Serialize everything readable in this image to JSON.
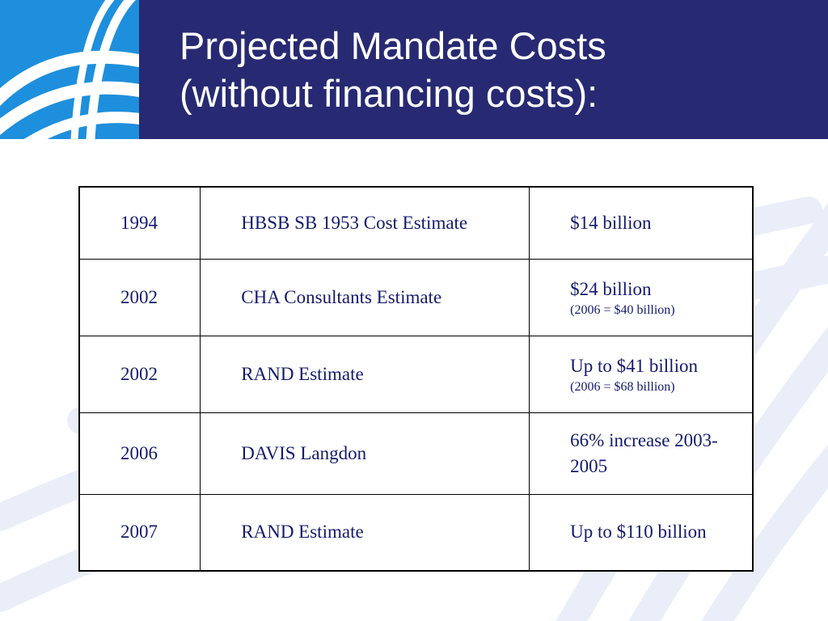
{
  "slide": {
    "title_line1": "Projected Mandate Costs",
    "title_line2": "(without financing costs):"
  },
  "colors": {
    "header_bg": "#272a72",
    "logo_bg": "#1e8fdc",
    "text": "#141a6e"
  },
  "rows": [
    {
      "year": "1994",
      "source": "HBSB SB 1953 Cost Estimate",
      "cost": "$14 billion",
      "note": ""
    },
    {
      "year": "2002",
      "source": "CHA Consultants Estimate",
      "cost": "$24 billion",
      "note": "(2006 = $40 billion)"
    },
    {
      "year": "2002",
      "source": "RAND Estimate",
      "cost": "Up to $41 billion",
      "note": "(2006 = $68 billion)"
    },
    {
      "year": "2006",
      "source": "DAVIS Langdon",
      "cost": "66% increase 2003-2005",
      "note": ""
    },
    {
      "year": "2007",
      "source": "RAND Estimate",
      "cost": "Up to $110 billion",
      "note": ""
    }
  ]
}
